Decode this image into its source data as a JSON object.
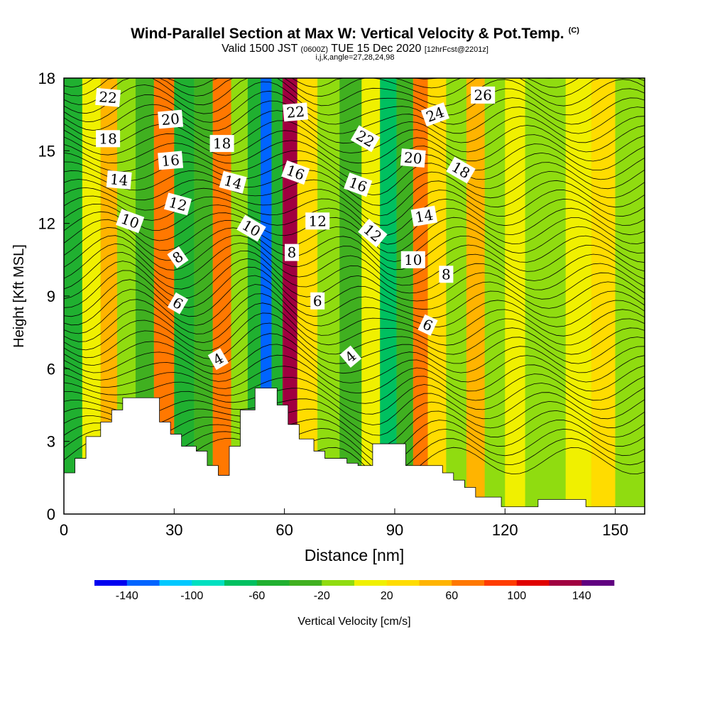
{
  "header": {
    "title": "Wind-Parallel Section at Max W: Vertical Velocity & Pot.Temp.",
    "copyright": "(C)",
    "valid_prefix": "Valid 1500 JST",
    "valid_utc": "(0600Z)",
    "valid_date": "TUE 15 Dec 2020",
    "forecast": "[12hrFcst@2201z]",
    "indices": "i,j,k,angle=27,28,24,98"
  },
  "chart_data": {
    "type": "contour",
    "xlabel": "Distance [nm]",
    "ylabel": "Height [Kft MSL]",
    "xlim": [
      0,
      158
    ],
    "ylim": [
      0,
      18
    ],
    "x_ticks": [
      0,
      30,
      60,
      90,
      120,
      150
    ],
    "y_ticks": [
      0,
      3,
      6,
      9,
      12,
      15,
      18
    ],
    "colorbar": {
      "label": "Vertical Velocity [cm/s]",
      "ticks": [
        -140,
        -100,
        -60,
        -20,
        20,
        60,
        100,
        140
      ],
      "bounds": [
        -160,
        -140,
        -120,
        -100,
        -80,
        -60,
        -40,
        -20,
        0,
        20,
        40,
        60,
        80,
        100,
        120,
        140,
        160
      ],
      "colors": [
        "#0000f0",
        "#0064ff",
        "#00c8ff",
        "#00e0c0",
        "#00c060",
        "#20b030",
        "#40b020",
        "#90dc10",
        "#f0f000",
        "#ffdc00",
        "#ffb400",
        "#ff7800",
        "#ff3c00",
        "#e00000",
        "#a00040",
        "#600080"
      ]
    },
    "vertical_velocity_columns": [
      {
        "x": 2,
        "w": -50
      },
      {
        "x": 8,
        "w": 10
      },
      {
        "x": 12,
        "w": 40
      },
      {
        "x": 17,
        "w": -15
      },
      {
        "x": 22,
        "w": -40
      },
      {
        "x": 27,
        "w": 60
      },
      {
        "x": 33,
        "w": -50
      },
      {
        "x": 38,
        "w": -30
      },
      {
        "x": 43,
        "w": 70
      },
      {
        "x": 48,
        "w": -20
      },
      {
        "x": 52,
        "w": -50
      },
      {
        "x": 55,
        "w": -140
      },
      {
        "x": 58,
        "w": -60
      },
      {
        "x": 61,
        "w": 120
      },
      {
        "x": 66,
        "w": 30
      },
      {
        "x": 72,
        "w": -10
      },
      {
        "x": 78,
        "w": -30
      },
      {
        "x": 84,
        "w": 10
      },
      {
        "x": 88,
        "w": -80
      },
      {
        "x": 93,
        "w": -30
      },
      {
        "x": 97,
        "w": 60
      },
      {
        "x": 101,
        "w": 30
      },
      {
        "x": 107,
        "w": -10
      },
      {
        "x": 112,
        "w": 50
      },
      {
        "x": 117,
        "w": -10
      },
      {
        "x": 123,
        "w": 10
      },
      {
        "x": 128,
        "w": -20
      },
      {
        "x": 133,
        "w": -10
      },
      {
        "x": 140,
        "w": 10
      },
      {
        "x": 147,
        "w": 30
      },
      {
        "x": 153,
        "w": -10
      }
    ],
    "terrain": [
      {
        "x": 0,
        "h": 1.7
      },
      {
        "x": 3,
        "h": 2.3
      },
      {
        "x": 6,
        "h": 3.2
      },
      {
        "x": 10,
        "h": 3.8
      },
      {
        "x": 13,
        "h": 4.3
      },
      {
        "x": 16,
        "h": 4.8
      },
      {
        "x": 26,
        "h": 3.8
      },
      {
        "x": 29,
        "h": 3.3
      },
      {
        "x": 32,
        "h": 2.8
      },
      {
        "x": 36,
        "h": 2.6
      },
      {
        "x": 39,
        "h": 2.0
      },
      {
        "x": 42,
        "h": 1.6
      },
      {
        "x": 45,
        "h": 2.8
      },
      {
        "x": 48,
        "h": 4.3
      },
      {
        "x": 52,
        "h": 5.2
      },
      {
        "x": 58,
        "h": 4.5
      },
      {
        "x": 61,
        "h": 3.7
      },
      {
        "x": 64,
        "h": 3.1
      },
      {
        "x": 68,
        "h": 2.6
      },
      {
        "x": 71,
        "h": 2.3
      },
      {
        "x": 77,
        "h": 2.1
      },
      {
        "x": 80,
        "h": 2.0
      },
      {
        "x": 84,
        "h": 2.9
      },
      {
        "x": 93,
        "h": 2.0
      },
      {
        "x": 103,
        "h": 1.7
      },
      {
        "x": 106,
        "h": 1.4
      },
      {
        "x": 109,
        "h": 1.1
      },
      {
        "x": 112,
        "h": 0.7
      },
      {
        "x": 119,
        "h": 0.3
      },
      {
        "x": 129,
        "h": 0.6
      },
      {
        "x": 142,
        "h": 0.3
      },
      {
        "x": 156,
        "h": 0.3
      }
    ],
    "isentrope_labels": [
      {
        "text": "22",
        "x": 12,
        "y": 17.2,
        "rot": 5
      },
      {
        "text": "18",
        "x": 12,
        "y": 15.5,
        "rot": 0
      },
      {
        "text": "14",
        "x": 15,
        "y": 13.8,
        "rot": 5
      },
      {
        "text": "10",
        "x": 18,
        "y": 12.1,
        "rot": 20
      },
      {
        "text": "20",
        "x": 29,
        "y": 16.3,
        "rot": -5
      },
      {
        "text": "16",
        "x": 29,
        "y": 14.6,
        "rot": -5
      },
      {
        "text": "12",
        "x": 31,
        "y": 12.8,
        "rot": 15
      },
      {
        "text": "8",
        "x": 31,
        "y": 10.6,
        "rot": -35
      },
      {
        "text": "6",
        "x": 31,
        "y": 8.7,
        "rot": 30
      },
      {
        "text": "18",
        "x": 43,
        "y": 15.3,
        "rot": 0
      },
      {
        "text": "14",
        "x": 46,
        "y": 13.7,
        "rot": 15
      },
      {
        "text": "4",
        "x": 42,
        "y": 6.4,
        "rot": -30
      },
      {
        "text": "10",
        "x": 51,
        "y": 11.8,
        "rot": 30
      },
      {
        "text": "22",
        "x": 63,
        "y": 16.6,
        "rot": -5
      },
      {
        "text": "16",
        "x": 63,
        "y": 14.1,
        "rot": 20
      },
      {
        "text": "8",
        "x": 62,
        "y": 10.8,
        "rot": 0
      },
      {
        "text": "12",
        "x": 69,
        "y": 12.1,
        "rot": 0
      },
      {
        "text": "6",
        "x": 69,
        "y": 8.8,
        "rot": 0
      },
      {
        "text": "22",
        "x": 82,
        "y": 15.5,
        "rot": 30
      },
      {
        "text": "16",
        "x": 80,
        "y": 13.6,
        "rot": 20
      },
      {
        "text": "12",
        "x": 84,
        "y": 11.6,
        "rot": 40
      },
      {
        "text": "4",
        "x": 78,
        "y": 6.5,
        "rot": -40
      },
      {
        "text": "20",
        "x": 95,
        "y": 14.7,
        "rot": 5
      },
      {
        "text": "14",
        "x": 98,
        "y": 12.3,
        "rot": -10
      },
      {
        "text": "10",
        "x": 95,
        "y": 10.5,
        "rot": 0
      },
      {
        "text": "24",
        "x": 101,
        "y": 16.5,
        "rot": -20
      },
      {
        "text": "18",
        "x": 108,
        "y": 14.2,
        "rot": 30
      },
      {
        "text": "8",
        "x": 104,
        "y": 9.9,
        "rot": 0
      },
      {
        "text": "6",
        "x": 99,
        "y": 7.8,
        "rot": 25
      },
      {
        "text": "26",
        "x": 114,
        "y": 17.3,
        "rot": 0
      }
    ]
  }
}
